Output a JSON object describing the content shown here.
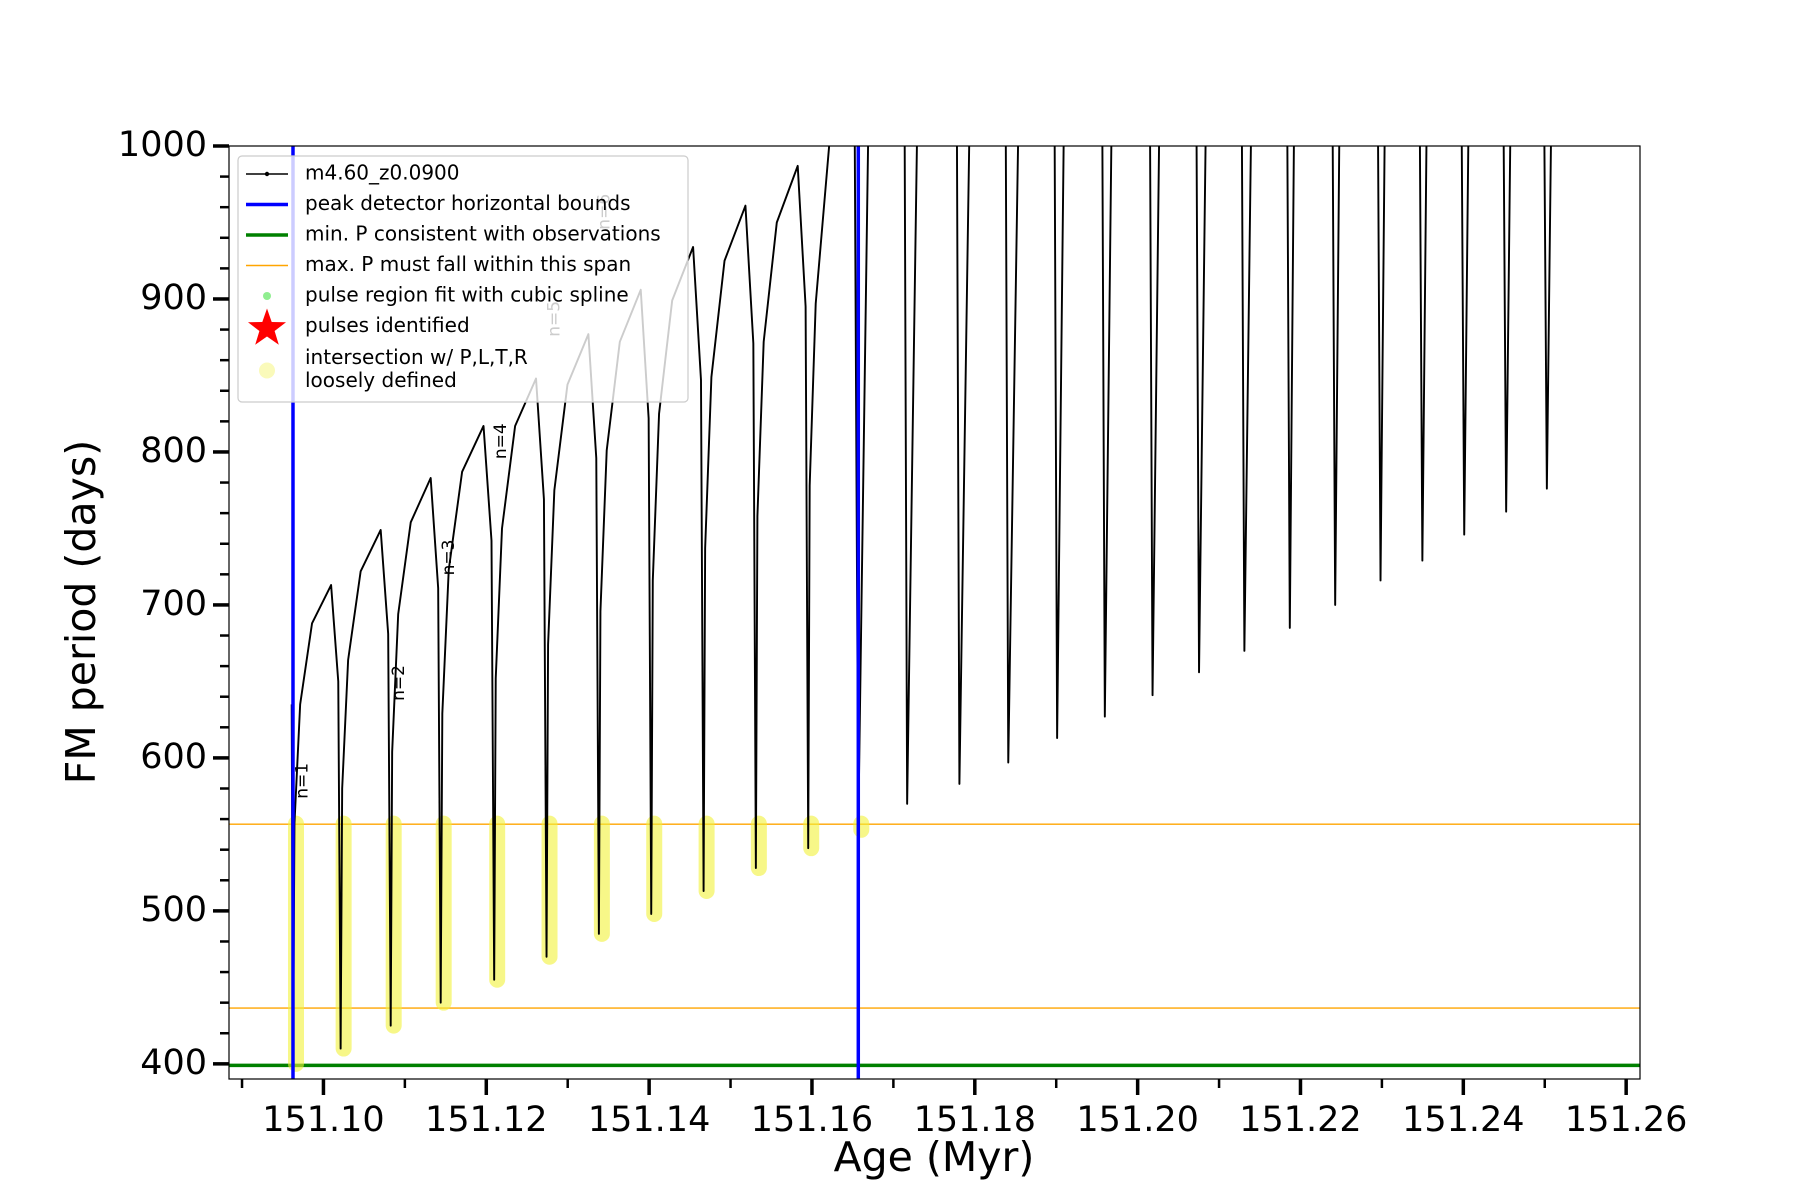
{
  "chart_data": {
    "type": "line",
    "xlabel": "Age (Myr)",
    "ylabel": "FM period (days)",
    "xlim": [
      151.0884,
      151.2617
    ],
    "ylim": [
      390.1,
      1000
    ],
    "xticks": [
      {
        "value": 151.1,
        "label": "151.10"
      },
      151.12,
      151.14,
      151.16,
      151.18,
      {
        "value": 151.2,
        "label": "151.20"
      },
      151.22,
      151.24,
      151.26
    ],
    "xminorticks": [
      151.09,
      151.11,
      151.13,
      151.15,
      151.17,
      151.19,
      151.21,
      151.23,
      151.25
    ],
    "yticks": [
      400,
      500,
      600,
      700,
      800,
      900,
      1000
    ],
    "yminorticks": [
      420,
      440,
      460,
      480,
      520,
      540,
      560,
      580,
      620,
      640,
      660,
      680,
      720,
      740,
      760,
      780,
      820,
      840,
      860,
      880,
      920,
      940,
      960,
      980
    ],
    "grid": false,
    "legend": "upper left",
    "series": [
      {
        "name": "m4.60_z0.0900",
        "type": "line",
        "color": "#000000",
        "linewidth": 1.2,
        "x": [
          151.0961,
          151.09626,
          151.09644,
          151.09714,
          151.0986,
          151.10094,
          151.10182,
          151.10211,
          151.1023,
          151.10303,
          151.10457,
          151.10703,
          151.10795,
          151.10826,
          151.10844,
          151.10918,
          151.11072,
          151.11317,
          151.11409,
          151.1144,
          151.1146,
          151.11539,
          151.11703,
          151.11966,
          151.12064,
          151.12097,
          151.12116,
          151.12193,
          151.12354,
          151.12611,
          151.12708,
          151.1274,
          151.12759,
          151.12836,
          151.12997,
          151.13254,
          151.13351,
          151.13383,
          151.13402,
          151.13479,
          151.1364,
          151.13897,
          151.13994,
          151.14026,
          151.14045,
          151.14122,
          151.14283,
          151.1454,
          151.14637,
          151.14669,
          151.14688,
          151.14765,
          151.14926,
          151.15183,
          151.1528,
          151.15311,
          151.1533,
          151.15407,
          151.15568,
          151.15825,
          151.15922,
          151.15954,
          151.15972,
          151.16046,
          151.16211,
          null,
          151.16526,
          151.16569,
          151.16689,
          null,
          151.17139,
          151.17169,
          151.17289,
          null,
          151.17781,
          151.17811,
          151.17931,
          null,
          151.18381,
          151.18411,
          151.18531,
          null,
          151.18981,
          151.19011,
          151.19091,
          null,
          151.19567,
          151.19597,
          151.19677,
          null,
          151.20153,
          151.20183,
          151.20263,
          null,
          151.20724,
          151.20754,
          151.20834,
          null,
          151.21281,
          151.21311,
          151.21391,
          null,
          151.21839,
          151.21869,
          151.21919,
          null,
          151.22396,
          151.22426,
          151.22476,
          null,
          151.22953,
          151.22983,
          151.23033,
          null,
          151.23467,
          151.23497,
          151.23547,
          null,
          151.23981,
          151.24011,
          151.24061,
          null,
          151.24496,
          151.24526,
          151.24576,
          null,
          151.24996,
          151.25026,
          151.25076
        ],
        "y": [
          635,
          400,
          557,
          635,
          688,
          713,
          650,
          410,
          580,
          664,
          722,
          749,
          681,
          425,
          604,
          694,
          754,
          783,
          711,
          440,
          629,
          723,
          787,
          817,
          742,
          455,
          652,
          750,
          817,
          848,
          769,
          470,
          674,
          775,
          844,
          877,
          796,
          485,
          696,
          801,
          872,
          906,
          822,
          498,
          716,
          825,
          899,
          934,
          847,
          513,
          737,
          849,
          925,
          961,
          871,
          528,
          758,
          872,
          950,
          987,
          895,
          541,
          778,
          897,
          1000,
          null,
          1000,
          555,
          1000,
          null,
          1000,
          570,
          1000,
          null,
          1000,
          583,
          1000,
          null,
          1000,
          597,
          1000,
          null,
          1000,
          613,
          1000,
          null,
          1000,
          627,
          1000,
          null,
          1000,
          641,
          1000,
          null,
          1000,
          656,
          1000,
          null,
          1000,
          670,
          1000,
          null,
          1000,
          685,
          1000,
          null,
          1000,
          700,
          1000,
          null,
          1000,
          716,
          1000,
          null,
          1000,
          729,
          1000,
          null,
          1000,
          746,
          1000,
          null,
          1000,
          761,
          1000,
          null,
          1000,
          776,
          1000
        ]
      },
      {
        "name": "peak detector horizontal bounds",
        "type": "vline",
        "color": "#0000ff",
        "linewidth": 3,
        "x": [
          151.09626,
          151.16569
        ]
      },
      {
        "name": "min. P consistent with observations",
        "type": "hline",
        "color": "#008000",
        "linewidth": 3,
        "y": [
          399
        ]
      },
      {
        "name": "max. P must fall within this span",
        "type": "hline",
        "color": "#ffa500",
        "linewidth": 1.2,
        "y": [
          436.5,
          556.7
        ]
      },
      {
        "name": "pulse region fit with cubic spline",
        "type": "dots",
        "color": "#90ee90"
      },
      {
        "name": "pulses identified",
        "type": "star",
        "color": "#ff0000"
      },
      {
        "name": [
          "intersection w/ P,L,T,R",
          "loosely defined"
        ],
        "type": "range",
        "color": "#f2f23a",
        "x": [
          151.09626,
          151.10211,
          151.10826,
          151.1144,
          151.12097,
          151.1274,
          151.13383,
          151.14026,
          151.14669,
          151.15311,
          151.15954,
          151.16569
        ],
        "low": [
          400,
          410,
          425,
          440,
          455,
          470,
          485,
          498,
          513,
          528,
          541,
          553
        ],
        "high": [
          557,
          557,
          557,
          557,
          557,
          557,
          557,
          557,
          557,
          557,
          557,
          557
        ]
      }
    ],
    "annotations": [
      {
        "text": "n=1",
        "x": 151.0974,
        "y": 585
      },
      {
        "text": "n=2",
        "x": 151.10926,
        "y": 649
      },
      {
        "text": "n=3",
        "x": 151.1154,
        "y": 731
      },
      {
        "text": "n=4",
        "x": 151.12183,
        "y": 807
      },
      {
        "text": "n=5",
        "x": 151.1284,
        "y": 887
      },
      {
        "text": "n=6",
        "x": 151.13454,
        "y": 957
      }
    ]
  }
}
